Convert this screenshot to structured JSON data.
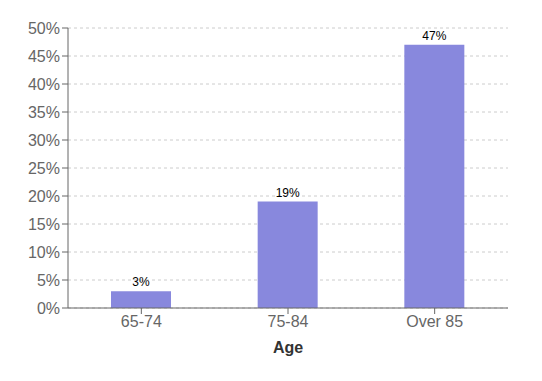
{
  "chart_data": {
    "type": "bar",
    "categories": [
      "65-74",
      "75-84",
      "Over 85"
    ],
    "values": [
      3,
      19,
      47
    ],
    "value_labels": [
      "3%",
      "19%",
      "47%"
    ],
    "data_labels": true,
    "color": "#8888dd",
    "xlabel": "Age",
    "ylim": [
      0,
      50
    ],
    "yticks": [
      {
        "value": 0,
        "label": "0%"
      },
      {
        "value": 5,
        "label": "5%"
      },
      {
        "value": 10,
        "label": "10%"
      },
      {
        "value": 15,
        "label": "15%"
      },
      {
        "value": 20,
        "label": "20%"
      },
      {
        "value": 25,
        "label": "25%"
      },
      {
        "value": 30,
        "label": "30%"
      },
      {
        "value": 35,
        "label": "35%"
      },
      {
        "value": 40,
        "label": "40%"
      },
      {
        "value": 45,
        "label": "45%"
      },
      {
        "value": 50,
        "label": "50%"
      }
    ],
    "grid": true
  }
}
